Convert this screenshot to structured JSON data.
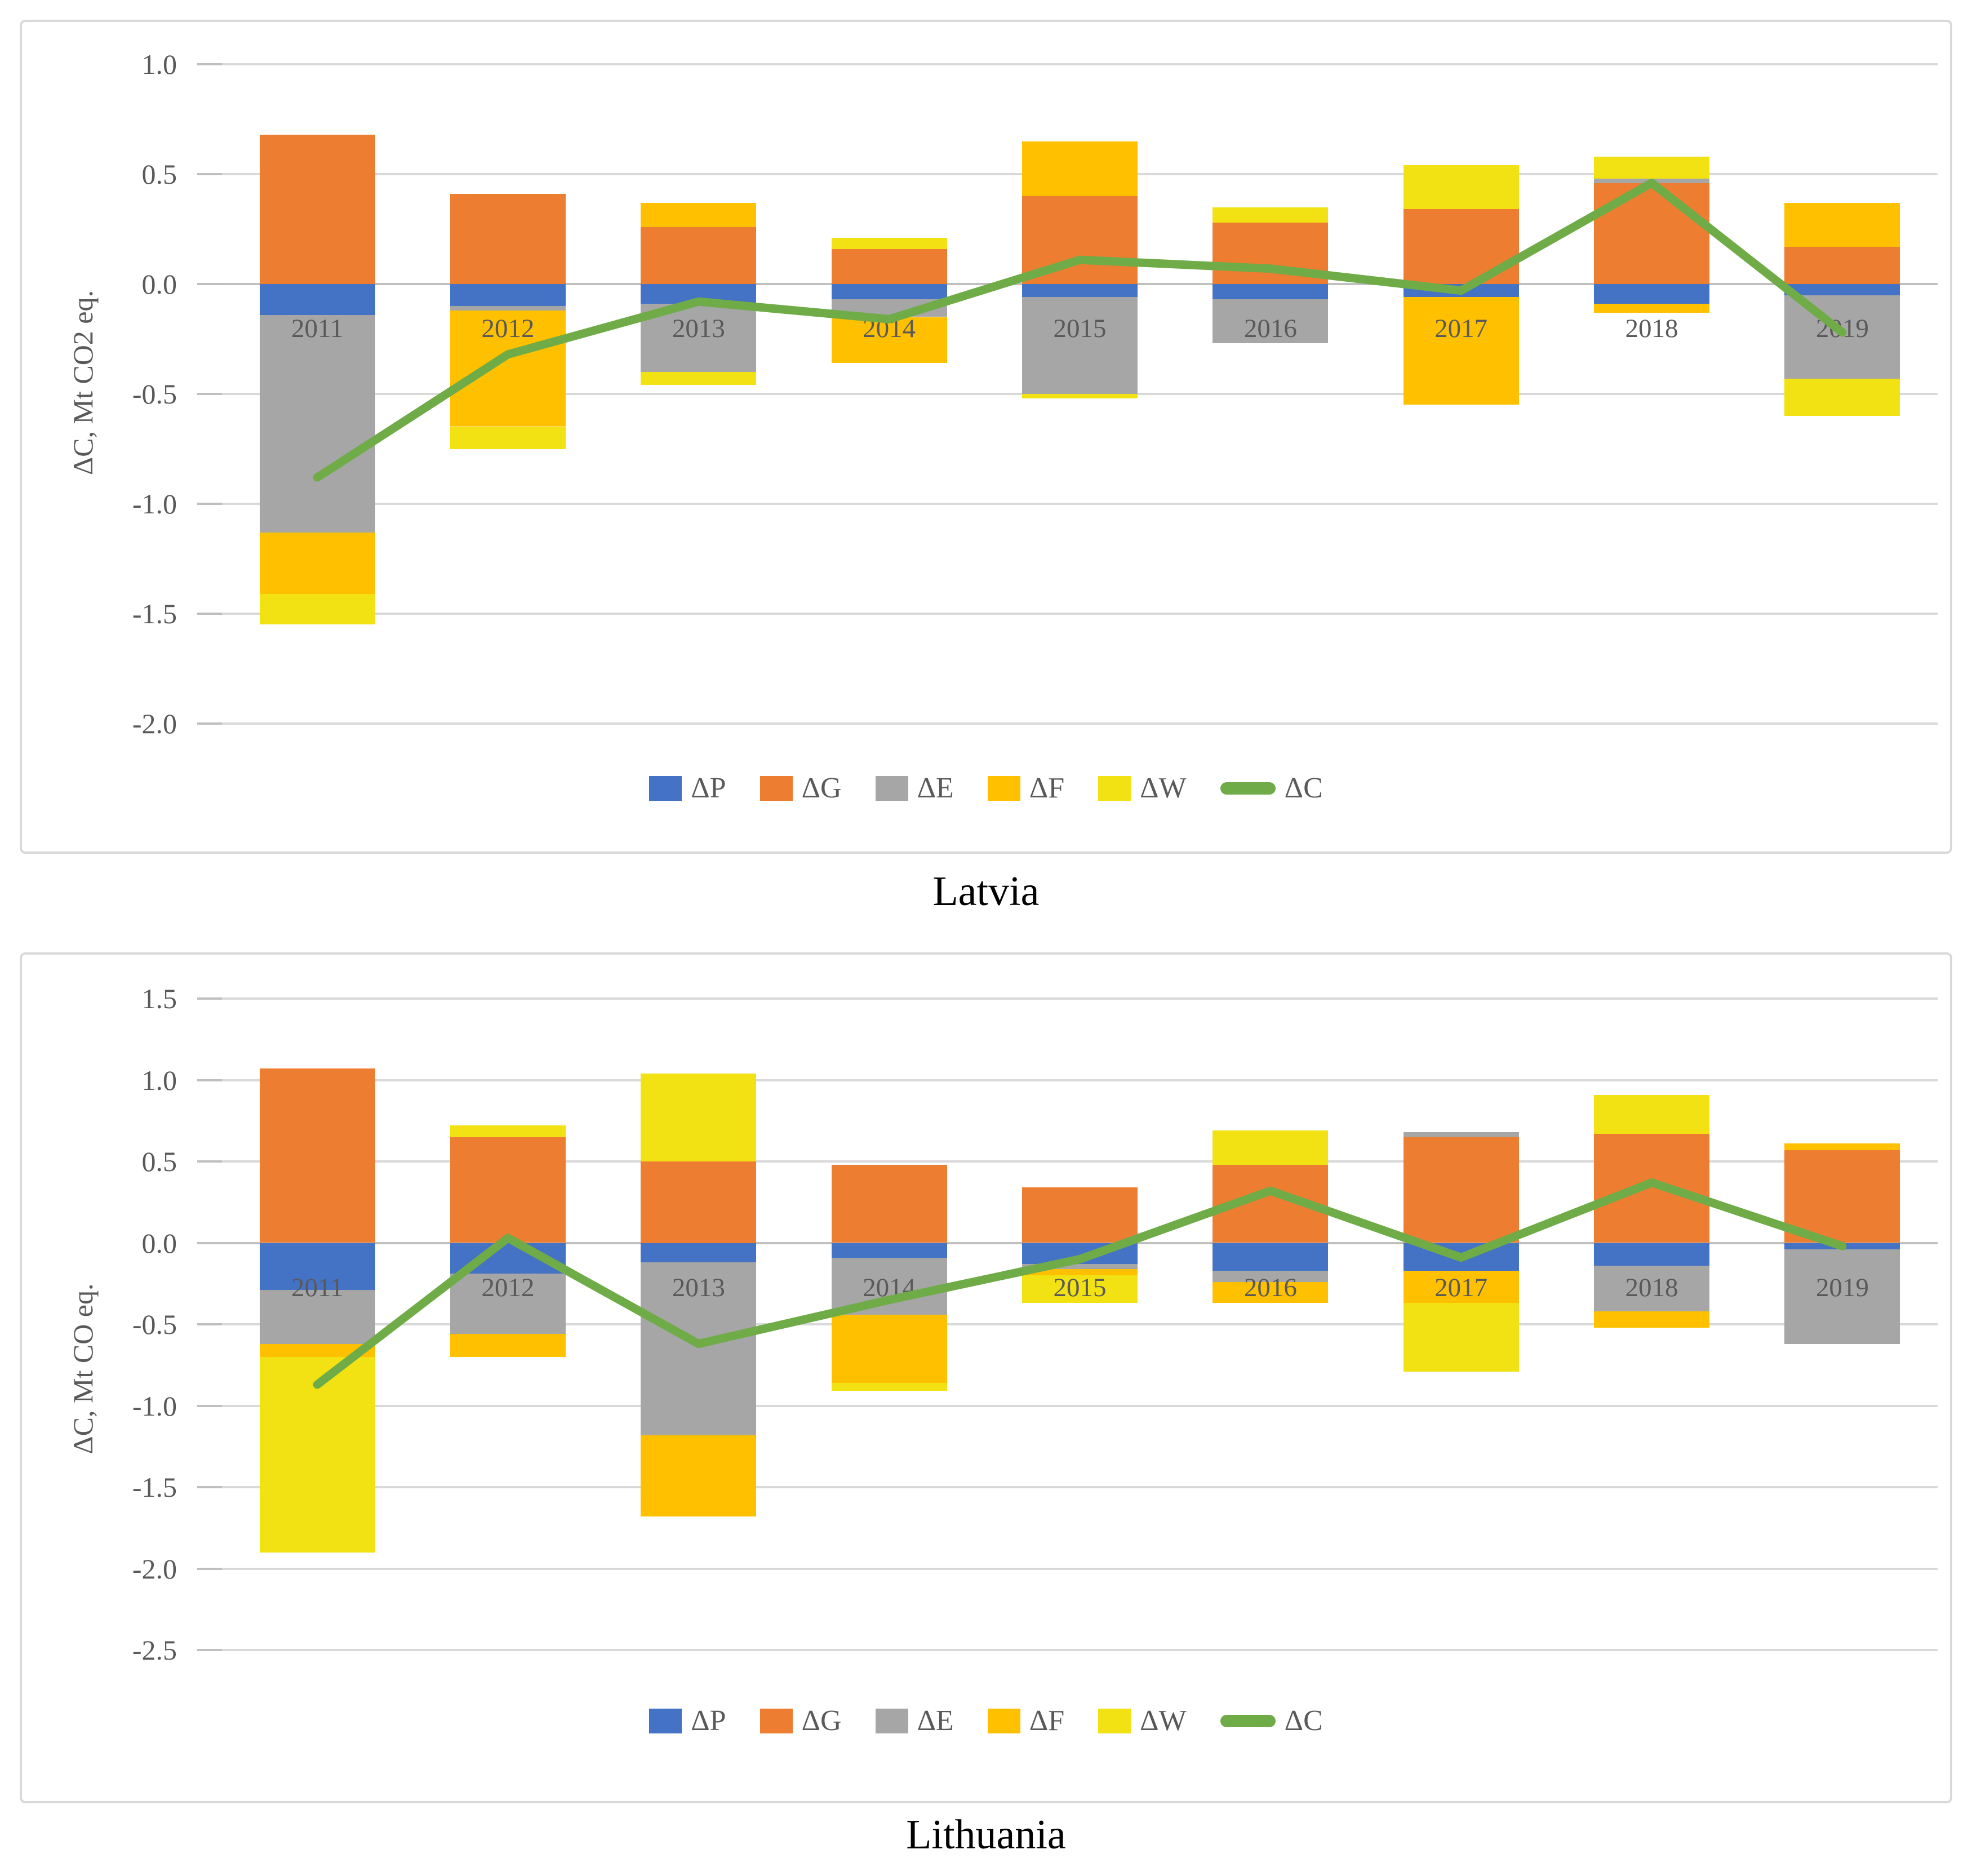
{
  "chart_data": [
    {
      "type": "bar",
      "subtype": "stacked-bar-with-line",
      "title": "Latvia",
      "y_axis_label": "ΔC, Mt CO2 eq.",
      "categories": [
        "2011",
        "2012",
        "2013",
        "2014",
        "2015",
        "2016",
        "2017",
        "2018",
        "2019"
      ],
      "y_axis": {
        "max": 1.0,
        "min": -2.0,
        "step": 0.5,
        "tick_labels": [
          "1.0",
          "0.5",
          "0.0",
          "-0.5",
          "-1.0",
          "-1.5",
          "-2.0"
        ]
      },
      "grid": true,
      "legend_position": "bottom",
      "series": [
        {
          "name": "ΔP",
          "type": "bar",
          "color": "#4472C4",
          "values": [
            -0.14,
            -0.1,
            -0.09,
            -0.07,
            -0.06,
            -0.07,
            -0.06,
            -0.09,
            -0.05
          ]
        },
        {
          "name": "ΔG",
          "type": "bar",
          "color": "#ED7D31",
          "values": [
            0.68,
            0.41,
            0.26,
            0.16,
            0.4,
            0.28,
            0.34,
            0.46,
            0.17
          ]
        },
        {
          "name": "ΔE",
          "type": "bar",
          "color": "#A6A6A6",
          "values": [
            -0.99,
            -0.02,
            -0.31,
            -0.08,
            -0.44,
            -0.2,
            0,
            0.02,
            -0.38
          ]
        },
        {
          "name": "ΔF",
          "type": "bar",
          "color": "#FFC000",
          "values": [
            -0.28,
            -0.53,
            0.11,
            -0.21,
            0.25,
            0,
            -0.49,
            -0.04,
            0.2
          ]
        },
        {
          "name": "ΔW",
          "type": "bar",
          "color": "#F2E113",
          "values": [
            -0.14,
            -0.1,
            -0.06,
            0.05,
            -0.02,
            0.07,
            0.2,
            0.1,
            -0.17
          ]
        },
        {
          "name": "ΔC",
          "type": "line",
          "color": "#6FAC47",
          "values": [
            -0.88,
            -0.32,
            -0.08,
            -0.16,
            0.11,
            0.07,
            -0.03,
            0.46,
            -0.22
          ]
        }
      ]
    },
    {
      "type": "bar",
      "subtype": "stacked-bar-with-line",
      "title": "Lithuania",
      "y_axis_label": "ΔC, Mt CO eq.",
      "categories": [
        "2011",
        "2012",
        "2013",
        "2014",
        "2015",
        "2016",
        "2017",
        "2018",
        "2019"
      ],
      "y_axis": {
        "max": 1.5,
        "min": -2.5,
        "step": 0.5,
        "tick_labels": [
          "1.5",
          "1.0",
          "0.5",
          "0.0",
          "-0.5",
          "-1.0",
          "-1.5",
          "-2.0",
          "-2.5"
        ]
      },
      "grid": true,
      "legend_position": "bottom",
      "series": [
        {
          "name": "ΔP",
          "type": "bar",
          "color": "#4472C4",
          "values": [
            -0.29,
            -0.19,
            -0.12,
            -0.09,
            -0.13,
            -0.17,
            -0.17,
            -0.14,
            -0.04
          ]
        },
        {
          "name": "ΔG",
          "type": "bar",
          "color": "#ED7D31",
          "values": [
            1.07,
            0.65,
            0.5,
            0.48,
            0.34,
            0.48,
            0.65,
            0.67,
            0.57
          ]
        },
        {
          "name": "ΔE",
          "type": "bar",
          "color": "#A6A6A6",
          "values": [
            -0.33,
            -0.37,
            -1.06,
            -0.35,
            -0.03,
            -0.07,
            0.03,
            -0.28,
            -0.58
          ]
        },
        {
          "name": "ΔF",
          "type": "bar",
          "color": "#FFC000",
          "values": [
            -0.08,
            -0.14,
            -0.5,
            -0.42,
            -0.04,
            -0.13,
            -0.2,
            -0.1,
            0.04
          ]
        },
        {
          "name": "ΔW",
          "type": "bar",
          "color": "#F2E113",
          "values": [
            -1.2,
            0.07,
            0.54,
            -0.05,
            -0.17,
            0.21,
            -0.42,
            0.24,
            0
          ]
        },
        {
          "name": "ΔC",
          "type": "line",
          "color": "#6FAC47",
          "values": [
            -0.87,
            0.03,
            -0.62,
            -0.35,
            -0.1,
            0.32,
            -0.09,
            0.37,
            -0.02
          ]
        }
      ]
    }
  ]
}
